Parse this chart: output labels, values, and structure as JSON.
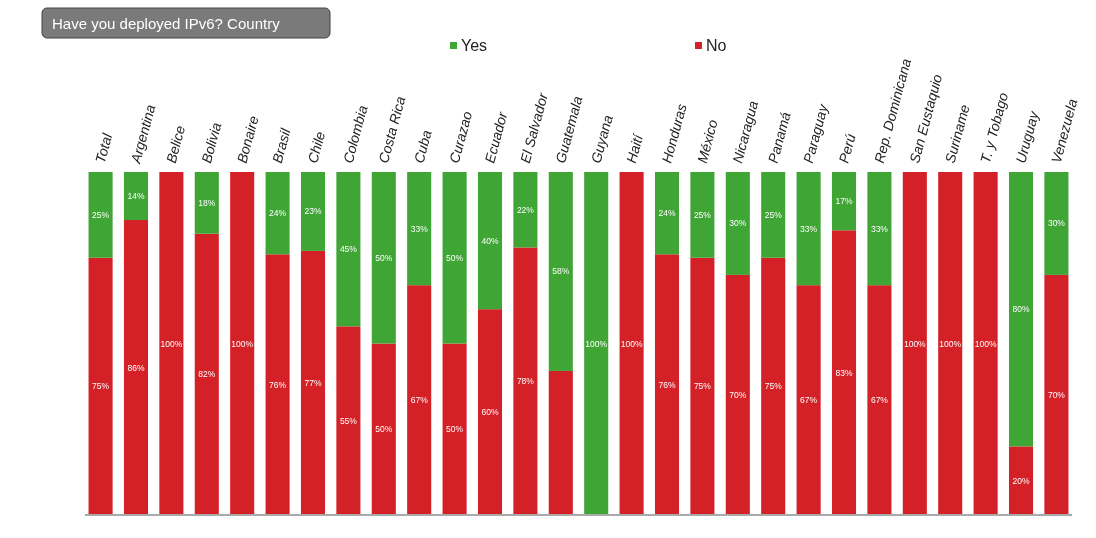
{
  "chart_data": {
    "type": "bar",
    "stacked": true,
    "title": "Have you deployed IPv6? Country",
    "categories": [
      "Total",
      "Argentina",
      "Belice",
      "Bolivia",
      "Bonaire",
      "Brasil",
      "Chile",
      "Colombia",
      "Costa Rica",
      "Cuba",
      "Curazao",
      "Ecuador",
      "El Salvador",
      "Guatemala",
      "Guyana",
      "Haití",
      "Honduras",
      "México",
      "Nicaragua",
      "Panamá",
      "Paraguay",
      "Perú",
      "Rep. Dominicana",
      "San Eustaquio",
      "Suriname",
      "T. y Tobago",
      "Uruguay",
      "Venezuela"
    ],
    "series": [
      {
        "name": "No",
        "color": "#d42027",
        "values": [
          75,
          86,
          100,
          82,
          100,
          76,
          77,
          55,
          50,
          67,
          50,
          60,
          78,
          42,
          0,
          100,
          76,
          75,
          70,
          75,
          67,
          83,
          67,
          100,
          100,
          100,
          20,
          70
        ],
        "value_labels": [
          "75%",
          "86%",
          "100%",
          "82%",
          "100%",
          "76%",
          "77%",
          "55%",
          "50%",
          "67%",
          "50%",
          "60%",
          "78%",
          null,
          null,
          "100%",
          "76%",
          "75%",
          "70%",
          "75%",
          "67%",
          "83%",
          "67%",
          "100%",
          "100%",
          "100%",
          "20%",
          "70%"
        ]
      },
      {
        "name": "Yes",
        "color": "#3fa535",
        "values": [
          25,
          14,
          0,
          18,
          0,
          24,
          23,
          45,
          50,
          33,
          50,
          40,
          22,
          58,
          100,
          0,
          24,
          25,
          30,
          25,
          33,
          17,
          33,
          0,
          0,
          0,
          80,
          30
        ],
        "value_labels": [
          "25%",
          "14%",
          null,
          "18%",
          null,
          "24%",
          "23%",
          "45%",
          "50%",
          "33%",
          "50%",
          "40%",
          "22%",
          "58%",
          "100%",
          null,
          "24%",
          "25%",
          "30%",
          "25%",
          "33%",
          "17%",
          "33%",
          null,
          null,
          null,
          "80%",
          "30%"
        ]
      }
    ],
    "ylim": [
      0,
      100
    ],
    "tick_labels": "x",
    "legend": "top",
    "grid": false
  }
}
